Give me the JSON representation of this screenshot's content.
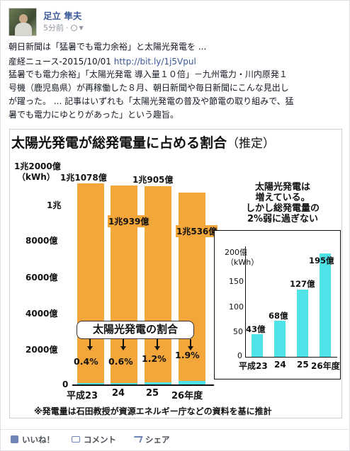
{
  "author": {
    "name": "足立 隼夫",
    "time": "5分前",
    "separator": "·"
  },
  "post": {
    "line1": "朝日新聞は「猛暑でも電力余裕」と太陽光発電を ...",
    "line2_prefix": "産経ニュース-2015/10/01 ",
    "link": "http://bit.ly/1j5Vpul",
    "line3": "猛暑でも電力余裕」「太陽光発電 導入量１０倍」－九州電力・川内原発１",
    "line4": "号機（鹿児島県）が再稼働した８月、朝日新聞や毎日新聞にこんな見出し",
    "line5": "が躍った。 ... 記事はいずれも「太陽光発電の普及や節電の取り組みで、猛",
    "line6": "暑でも電力にゆとりがあった」という趣旨。"
  },
  "chart_data": [
    {
      "type": "bar",
      "title": "太陽光発電が総発電量に占める割合",
      "subtitle": "（推定）",
      "ylabel": "（kWh）",
      "y_ticks": [
        "1兆2000億",
        "1兆",
        "8000億",
        "6000億",
        "4000億",
        "2000億",
        "0"
      ],
      "ylim": [
        0,
        1200000000000
      ],
      "categories": [
        "平成23",
        "24",
        "25",
        "26年度"
      ],
      "values": [
        1107800000000,
        1093900000000,
        1090500000000,
        1053600000000
      ],
      "value_labels": [
        "1兆1078億",
        "1兆939億",
        "1兆905億",
        "1兆536億"
      ],
      "solar_share": [
        "0.4%",
        "0.6%",
        "1.2%",
        "1.9%"
      ],
      "share_label": "太陽光発電の割合",
      "colors": {
        "total": "#f3a63a",
        "solar": "#4fe3e8"
      }
    },
    {
      "type": "bar",
      "annotation": "太陽光発電は\n増えている。\nしかし総発電量の\n2%弱に過ぎない",
      "ylabel": "（kWh）",
      "y_ticks": [
        "200億",
        "150",
        "100",
        "50",
        "0"
      ],
      "ylim": [
        0,
        20000000000
      ],
      "categories": [
        "平成23",
        "24",
        "25",
        "26年度"
      ],
      "values": [
        4300000000,
        6800000000,
        12700000000,
        19500000000
      ],
      "value_labels": [
        "43億",
        "68億",
        "127億",
        "195億"
      ],
      "colors": {
        "bar": "#4fe3e8"
      }
    }
  ],
  "footnote": "※発電量は石田教授が資源エネルギー庁などの資料を基に推計",
  "actions": {
    "like": "いいね！",
    "comment": "コメント",
    "share": "シェア"
  }
}
